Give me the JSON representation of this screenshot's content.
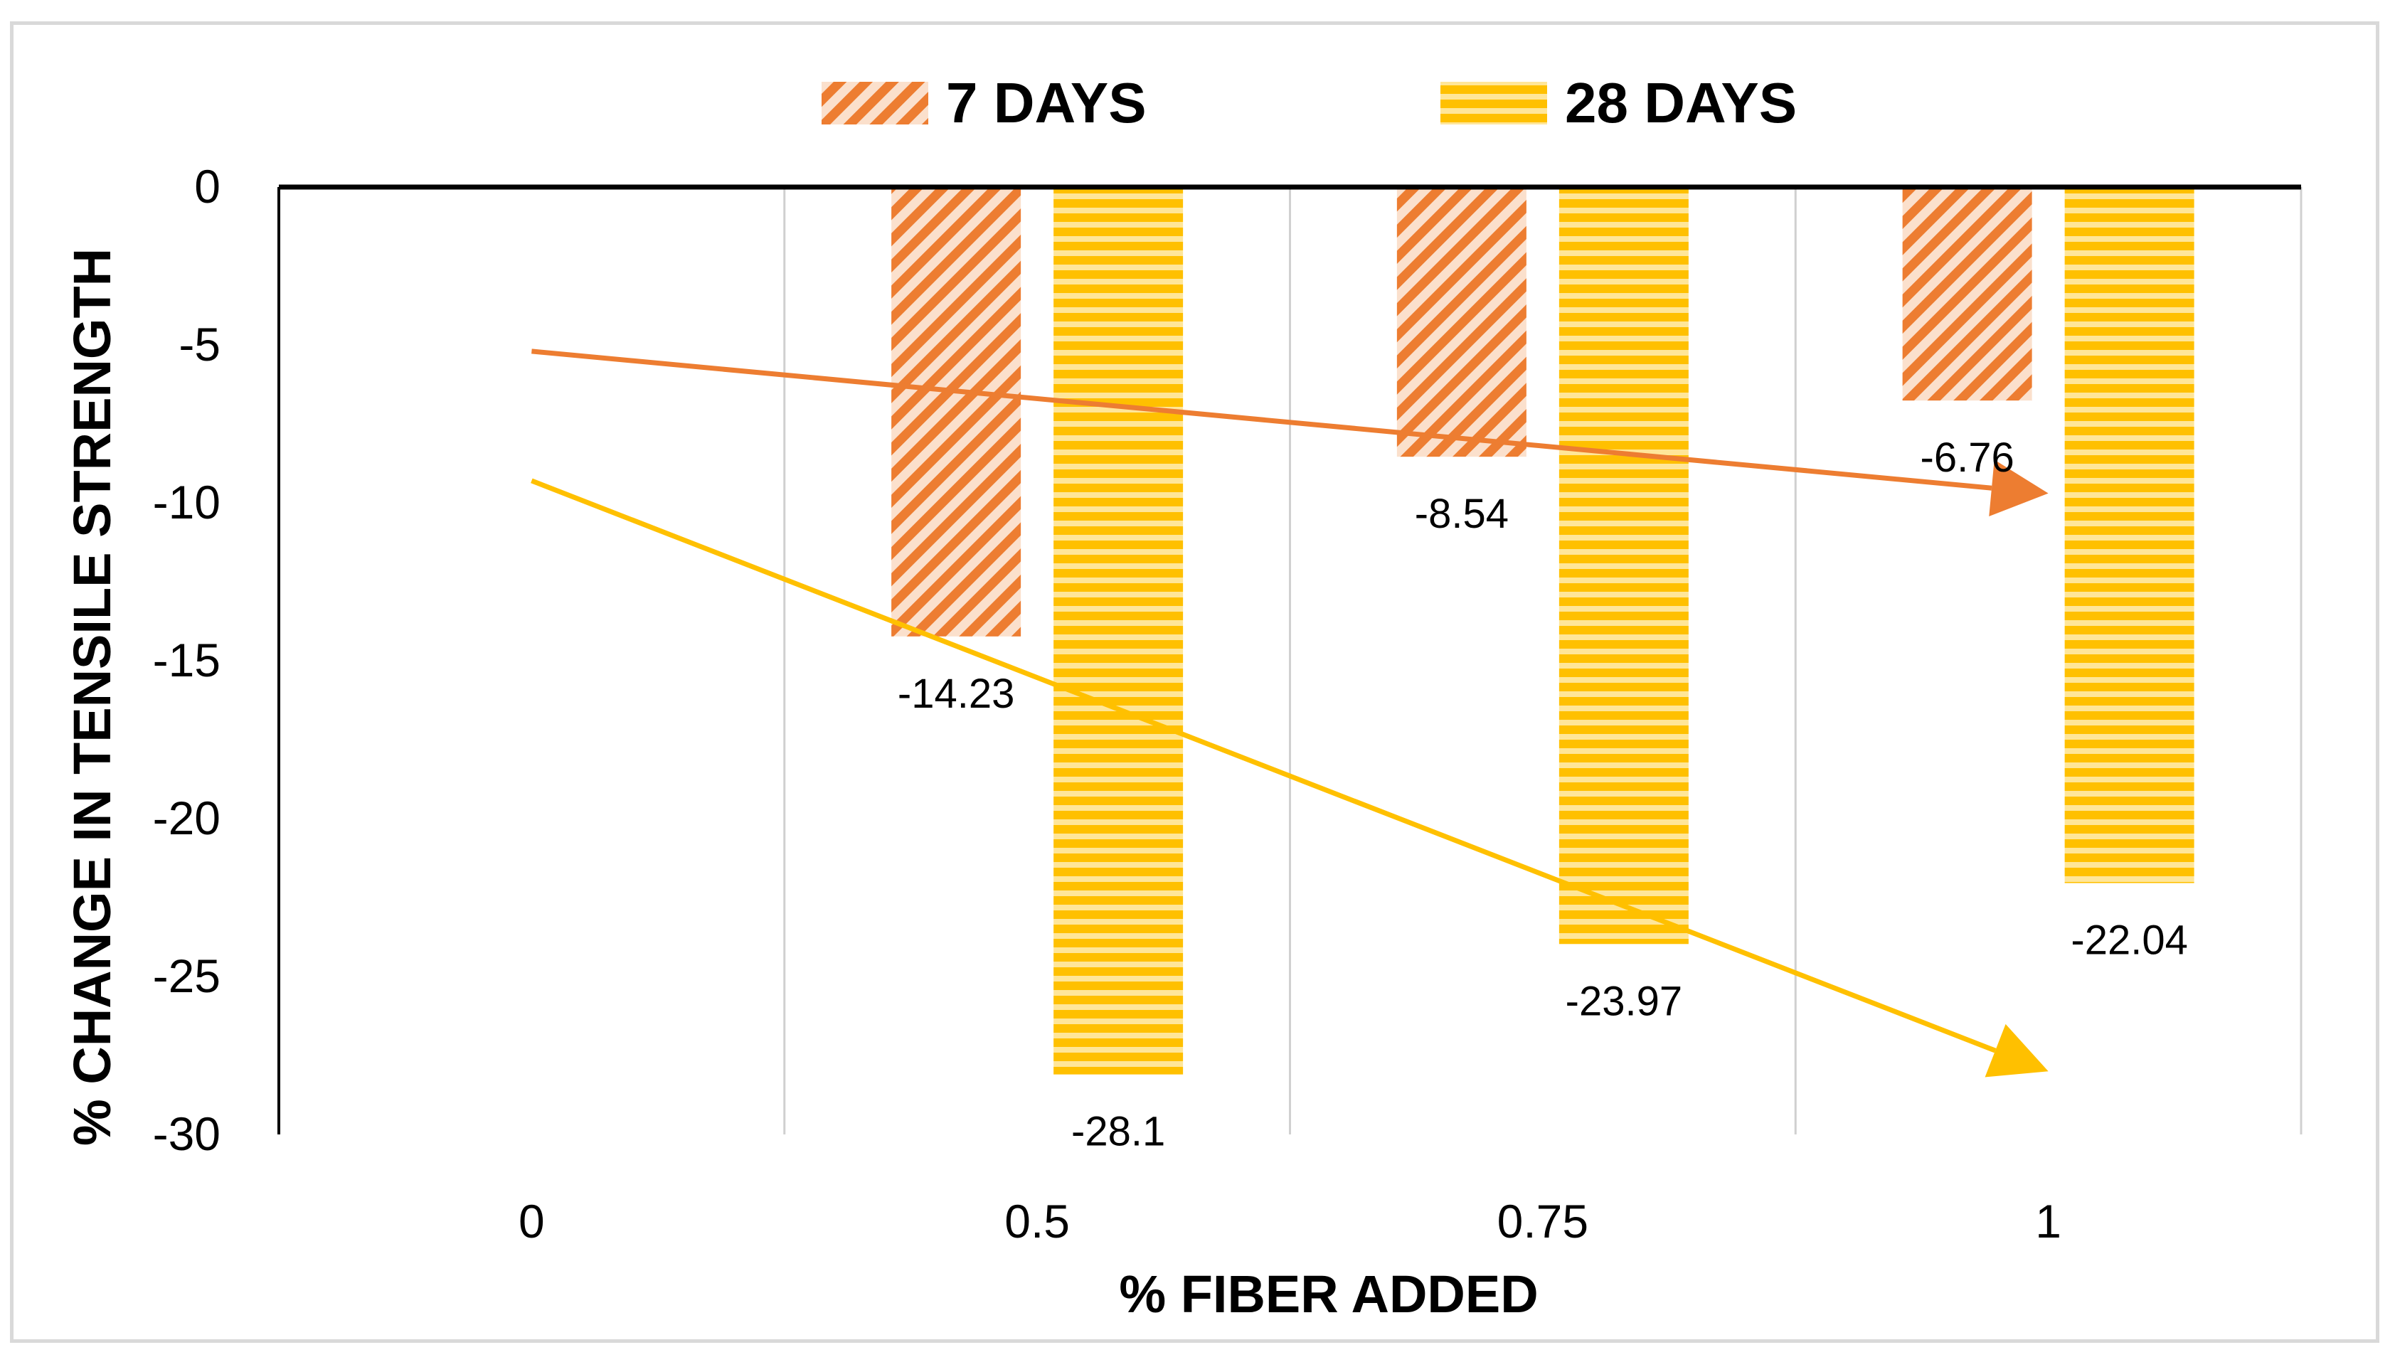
{
  "chart_data": {
    "type": "bar",
    "categories": [
      "0",
      "0.5",
      "0.75",
      "1"
    ],
    "series": [
      {
        "name": "7 DAYS",
        "values": [
          0,
          -14.23,
          -8.54,
          -6.76
        ],
        "labels": [
          "",
          "-14.23",
          "-8.54",
          "-6.76"
        ],
        "color": "#ed7d31",
        "pattern": "diagonal-hatch"
      },
      {
        "name": "28 DAYS",
        "values": [
          0,
          -28.1,
          -23.97,
          -22.04
        ],
        "labels": [
          "",
          "-28.1",
          "-23.97",
          "-22.04"
        ],
        "color": "#ffc000",
        "pattern": "horizontal-stripes"
      }
    ],
    "xlabel": "% FIBER ADDED",
    "ylabel": "% CHANGE IN TENSILE STRENGTH",
    "ylim": [
      -30,
      0
    ],
    "yticks": [
      "0",
      "-5",
      "-10",
      "-15",
      "-20",
      "-25",
      "-30"
    ],
    "ytick_values": [
      0,
      -5,
      -10,
      -15,
      -20,
      -25,
      -30
    ],
    "grid": "vertical",
    "legend_position": "top",
    "trend_arrows": [
      {
        "series": "7 DAYS",
        "from": {
          "x": 0,
          "y": -5.2
        },
        "to": {
          "x": 1,
          "y": -9.7
        },
        "color": "#ed7d31"
      },
      {
        "series": "28 DAYS",
        "from": {
          "x": 0,
          "y": -9.3
        },
        "to": {
          "x": 1,
          "y": -28.0
        },
        "color": "#ffc000"
      }
    ]
  }
}
